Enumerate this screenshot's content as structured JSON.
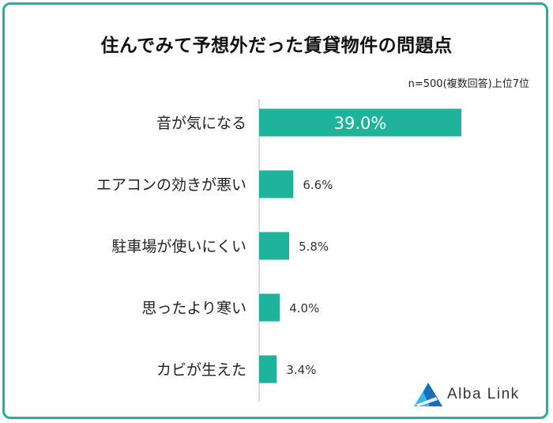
{
  "colors": {
    "accent": "#1fb39b",
    "logo_dark": "#1a6fb8",
    "logo_light": "#39b6e6"
  },
  "title": "住んでみて予想外だった賃貸物件の問題点",
  "note": "n=500(複数回答)上位7位",
  "logo": {
    "text": "Alba Link",
    "icon": "alba-link-logo-icon"
  },
  "chart_data": {
    "type": "bar",
    "orientation": "horizontal",
    "categories": [
      "音が気になる",
      "エアコンの効きが悪い",
      "駐車場が使いにくい",
      "思ったより寒い",
      "カビが生えた"
    ],
    "values": [
      39.0,
      6.6,
      5.8,
      4.0,
      3.4
    ],
    "value_labels": [
      "39.0%",
      "6.6%",
      "5.8%",
      "4.0%",
      "3.4%"
    ],
    "unit": "%",
    "xlim": [
      0,
      39.0
    ],
    "grid": false
  }
}
